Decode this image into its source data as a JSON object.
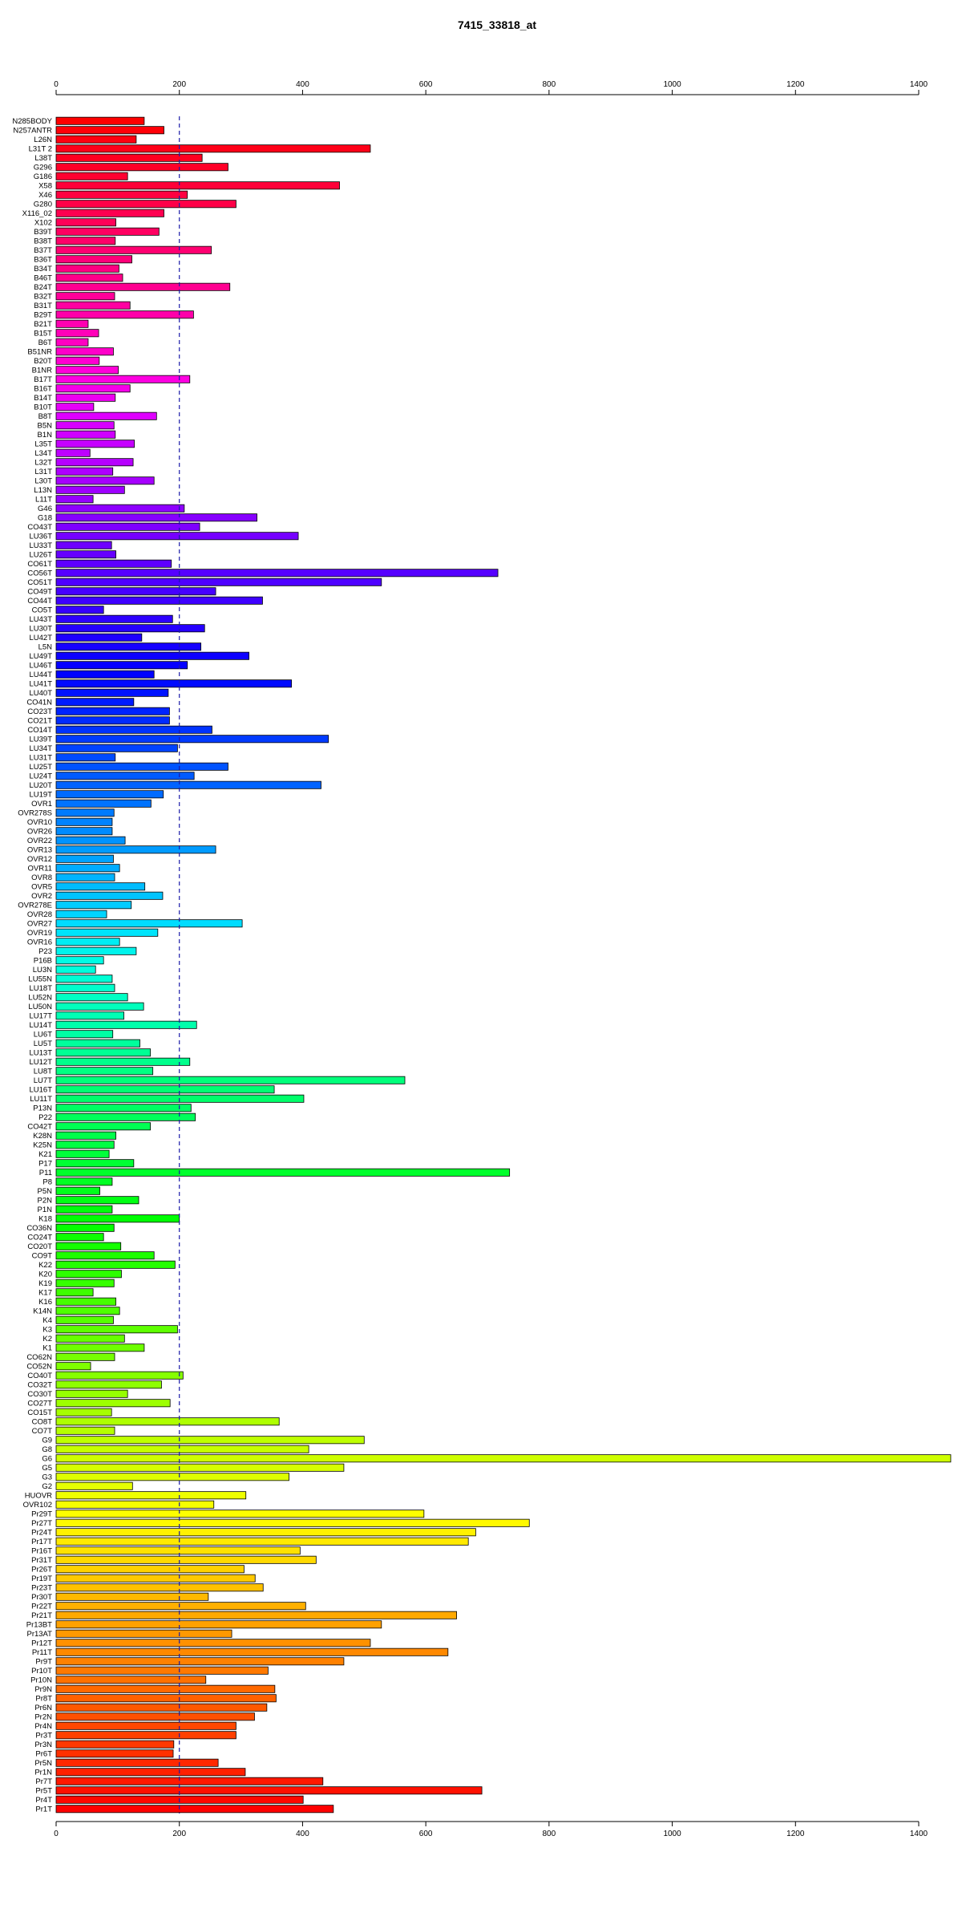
{
  "chart_data": {
    "type": "bar",
    "orientation": "horizontal",
    "title": "7415_33818_at",
    "xlabel": "",
    "ylabel": "",
    "xlim": [
      0,
      1400
    ],
    "x_ticks": [
      0,
      200,
      400,
      600,
      800,
      1000,
      1200,
      1400
    ],
    "reference_line": 200,
    "grid": false,
    "categories": [
      "N285BODY",
      "N257ANTR",
      "L26N",
      "L31T 2",
      "L38T",
      "G296",
      "G186",
      "X58",
      "X46",
      "G280",
      "X116_02",
      "X102",
      "B39T",
      "B38T",
      "B37T",
      "B36T",
      "B34T",
      "B46T",
      "B24T",
      "B32T",
      "B31T",
      "B29T",
      "B21T",
      "B15T",
      "B6T",
      "B51NR",
      "B20T",
      "B1NR",
      "B17T",
      "B16T",
      "B14T",
      "B10T",
      "B8T",
      "B5N",
      "B1N",
      "L35T",
      "L34T",
      "L32T",
      "L31T",
      "L30T",
      "L13N",
      "L11T",
      "G46",
      "G18",
      "CO43T",
      "LU36T",
      "LU33T",
      "LU26T",
      "CO61T",
      "CO56T",
      "CO51T",
      "CO49T",
      "CO44T",
      "CO5T",
      "LU43T",
      "LU30T",
      "LU42T",
      "L5N",
      "LU49T",
      "LU46T",
      "LU44T",
      "LU41T",
      "LU40T",
      "CO41N",
      "CO23T",
      "CO21T",
      "CO14T",
      "LU39T",
      "LU34T",
      "LU31T",
      "LU25T",
      "LU24T",
      "LU20T",
      "LU19T",
      "OVR1",
      "OVR278S",
      "OVR10",
      "OVR26",
      "OVR22",
      "OVR13",
      "OVR12",
      "OVR11",
      "OVR8",
      "OVR5",
      "OVR2",
      "OVR278E",
      "OVR28",
      "OVR27",
      "OVR19",
      "OVR16",
      "P23",
      "P16B",
      "LU3N",
      "LU55N",
      "LU18T",
      "LU52N",
      "LU50N",
      "LU17T",
      "LU14T",
      "LU6T",
      "LU5T",
      "LU13T",
      "LU12T",
      "LU8T",
      "LU7T",
      "LU16T",
      "LU11T",
      "P13N",
      "P22",
      "CO42T",
      "K28N",
      "K25N",
      "K21",
      "P17",
      "P11",
      "P8",
      "P5N",
      "P2N",
      "P1N",
      "K18",
      "CO36N",
      "CO24T",
      "CO20T",
      "CO9T",
      "K22",
      "K20",
      "K19",
      "K17",
      "K16",
      "K14N",
      "K4",
      "K3",
      "K2",
      "K1",
      "CO62N",
      "CO52N",
      "CO40T",
      "CO32T",
      "CO30T",
      "CO27T",
      "CO15T",
      "CO8T",
      "CO7T",
      "G9",
      "G8",
      "G6",
      "G5",
      "G3",
      "G2",
      "HUOVR",
      "OVR102",
      "Pr29T",
      "Pr27T",
      "Pr24T",
      "Pr17T",
      "Pr16T",
      "Pr31T",
      "Pr26T",
      "Pr19T",
      "Pr23T",
      "Pr30T",
      "Pr22T",
      "Pr21T",
      "Pr13BT",
      "Pr13AT",
      "Pr12T",
      "Pr11T",
      "Pr9T",
      "Pr10T",
      "Pr10N",
      "Pr9N",
      "Pr8T",
      "Pr6N",
      "Pr2N",
      "Pr4N",
      "Pr3T",
      "Pr3N",
      "Pr6T",
      "Pr5N",
      "Pr1N",
      "Pr7T",
      "Pr5T",
      "Pr4T",
      "Pr1T"
    ],
    "values": [
      143,
      175,
      130,
      510,
      237,
      279,
      116,
      460,
      213,
      292,
      175,
      97,
      167,
      96,
      252,
      123,
      102,
      108,
      282,
      95,
      120,
      223,
      52,
      69,
      52,
      93,
      70,
      101,
      217,
      120,
      96,
      61,
      163,
      94,
      96,
      127,
      55,
      125,
      92,
      159,
      111,
      60,
      208,
      326,
      233,
      393,
      90,
      97,
      187,
      717,
      528,
      259,
      335,
      77,
      189,
      241,
      139,
      235,
      313,
      213,
      159,
      382,
      182,
      126,
      184,
      184,
      253,
      442,
      197,
      96,
      279,
      224,
      430,
      174,
      154,
      94,
      91,
      91,
      112,
      259,
      93,
      103,
      95,
      144,
      173,
      122,
      82,
      302,
      165,
      103,
      130,
      77,
      64,
      91,
      95,
      116,
      142,
      110,
      228,
      92,
      136,
      153,
      217,
      157,
      566,
      354,
      402,
      219,
      226,
      153,
      97,
      94,
      86,
      126,
      736,
      91,
      71,
      134,
      91,
      200,
      94,
      77,
      105,
      159,
      193,
      106,
      94,
      60,
      97,
      103,
      93,
      197,
      111,
      143,
      95,
      56,
      206,
      171,
      116,
      185,
      90,
      362,
      95,
      500,
      410,
      1452,
      467,
      378,
      124,
      308,
      256,
      597,
      768,
      681,
      669,
      396,
      422,
      305,
      323,
      336,
      247,
      405,
      650,
      528,
      285,
      510,
      636,
      467,
      344,
      243,
      355,
      357,
      342,
      322,
      292,
      292,
      191,
      190,
      263,
      307,
      433,
      691,
      401,
      450
    ],
    "colors": [
      "#ff0000",
      "#ff0020",
      "#ff0040",
      "#ff0060",
      "#ff0080",
      "#ff00a0",
      "#ff00c0",
      "#ff00e0",
      "#e000ff",
      "#c000ff",
      "#a000ff",
      "#8000ff",
      "#6000ff",
      "#4000ff",
      "#2000ff",
      "#0000ff",
      "#0020ff",
      "#0040ff",
      "#0060ff",
      "#0080ff",
      "#00a0ff",
      "#00c0ff",
      "#00e0ff",
      "#00ffe0",
      "#00ffc0",
      "#00ffa0",
      "#00ff80",
      "#00ff60",
      "#00ff40",
      "#00ff20",
      "#00ff00",
      "#20ff00",
      "#40ff00",
      "#60ff00",
      "#80ff00",
      "#a0ff00",
      "#c0ff00",
      "#e0ff00",
      "#ffff00",
      "#ffe000",
      "#ffc000",
      "#ffa000",
      "#ff8000",
      "#ff6000",
      "#ff4000",
      "#ff2000",
      "#ff0000"
    ]
  }
}
